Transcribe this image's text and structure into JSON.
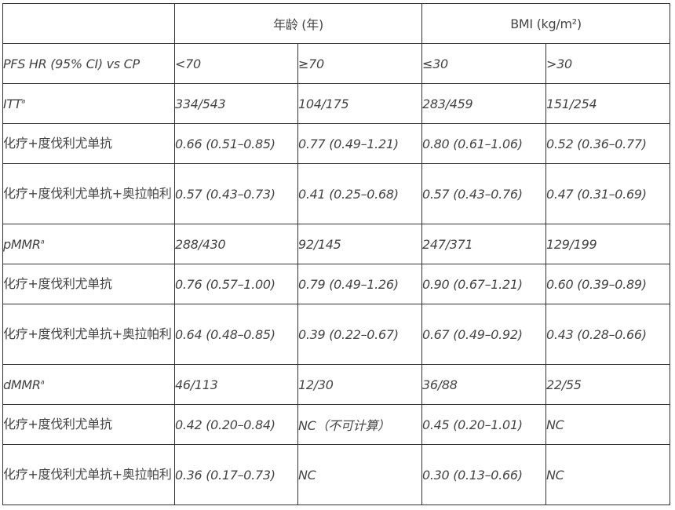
{
  "header": {
    "corner": "",
    "group_age": "年龄 (年)",
    "group_bmi": "BMI (kg/m²)",
    "row_label": "PFS HR (95% CI) vs CP",
    "subgroups": [
      "<70",
      "≥70",
      "≤30",
      ">30"
    ]
  },
  "sections": [
    {
      "label": "ITT",
      "sup": "a",
      "counts": [
        "334/543",
        "104/175",
        "283/459",
        "151/254"
      ],
      "rows": [
        {
          "label": "化疗+度伐利尤单抗",
          "values": [
            "0.66 (0.51–0.85)",
            "0.77 (0.49–1.21)",
            "0.80 (0.61–1.06)",
            "0.52 (0.36–0.77)"
          ]
        },
        {
          "label": "化疗+度伐利尤单抗+奥拉帕利",
          "values": [
            "0.57 (0.43–0.73)",
            "0.41 (0.25–0.68)",
            "0.57 (0.43–0.76)",
            "0.47 (0.31–0.69)"
          ]
        }
      ]
    },
    {
      "label": "pMMR",
      "sup": "a",
      "counts": [
        "288/430",
        "92/145",
        "247/371",
        "129/199"
      ],
      "rows": [
        {
          "label": "化疗+度伐利尤单抗",
          "values": [
            "0.76 (0.57–1.00)",
            "0.79 (0.49–1.26)",
            "0.90 (0.67–1.21)",
            "0.60 (0.39–0.89)"
          ]
        },
        {
          "label": "化疗+度伐利尤单抗+奥拉帕利",
          "values": [
            "0.64 (0.48–0.85)",
            "0.39 (0.22–0.67)",
            "0.67 (0.49–0.92)",
            "0.43 (0.28–0.66)"
          ]
        }
      ]
    },
    {
      "label": "dMMR",
      "sup": "a",
      "counts": [
        "46/113",
        "12/30",
        "36/88",
        "22/55"
      ],
      "rows": [
        {
          "label": "化疗+度伐利尤单抗",
          "values": [
            "0.42 (0.20–0.84)",
            "NC（不可计算）",
            "0.45 (0.20–1.01)",
            "NC"
          ]
        },
        {
          "label": "化疗+度伐利尤单抗+奥拉帕利",
          "values": [
            "0.36 (0.17–0.73)",
            "NC",
            "0.30 (0.13–0.66)",
            "NC"
          ]
        }
      ]
    }
  ]
}
